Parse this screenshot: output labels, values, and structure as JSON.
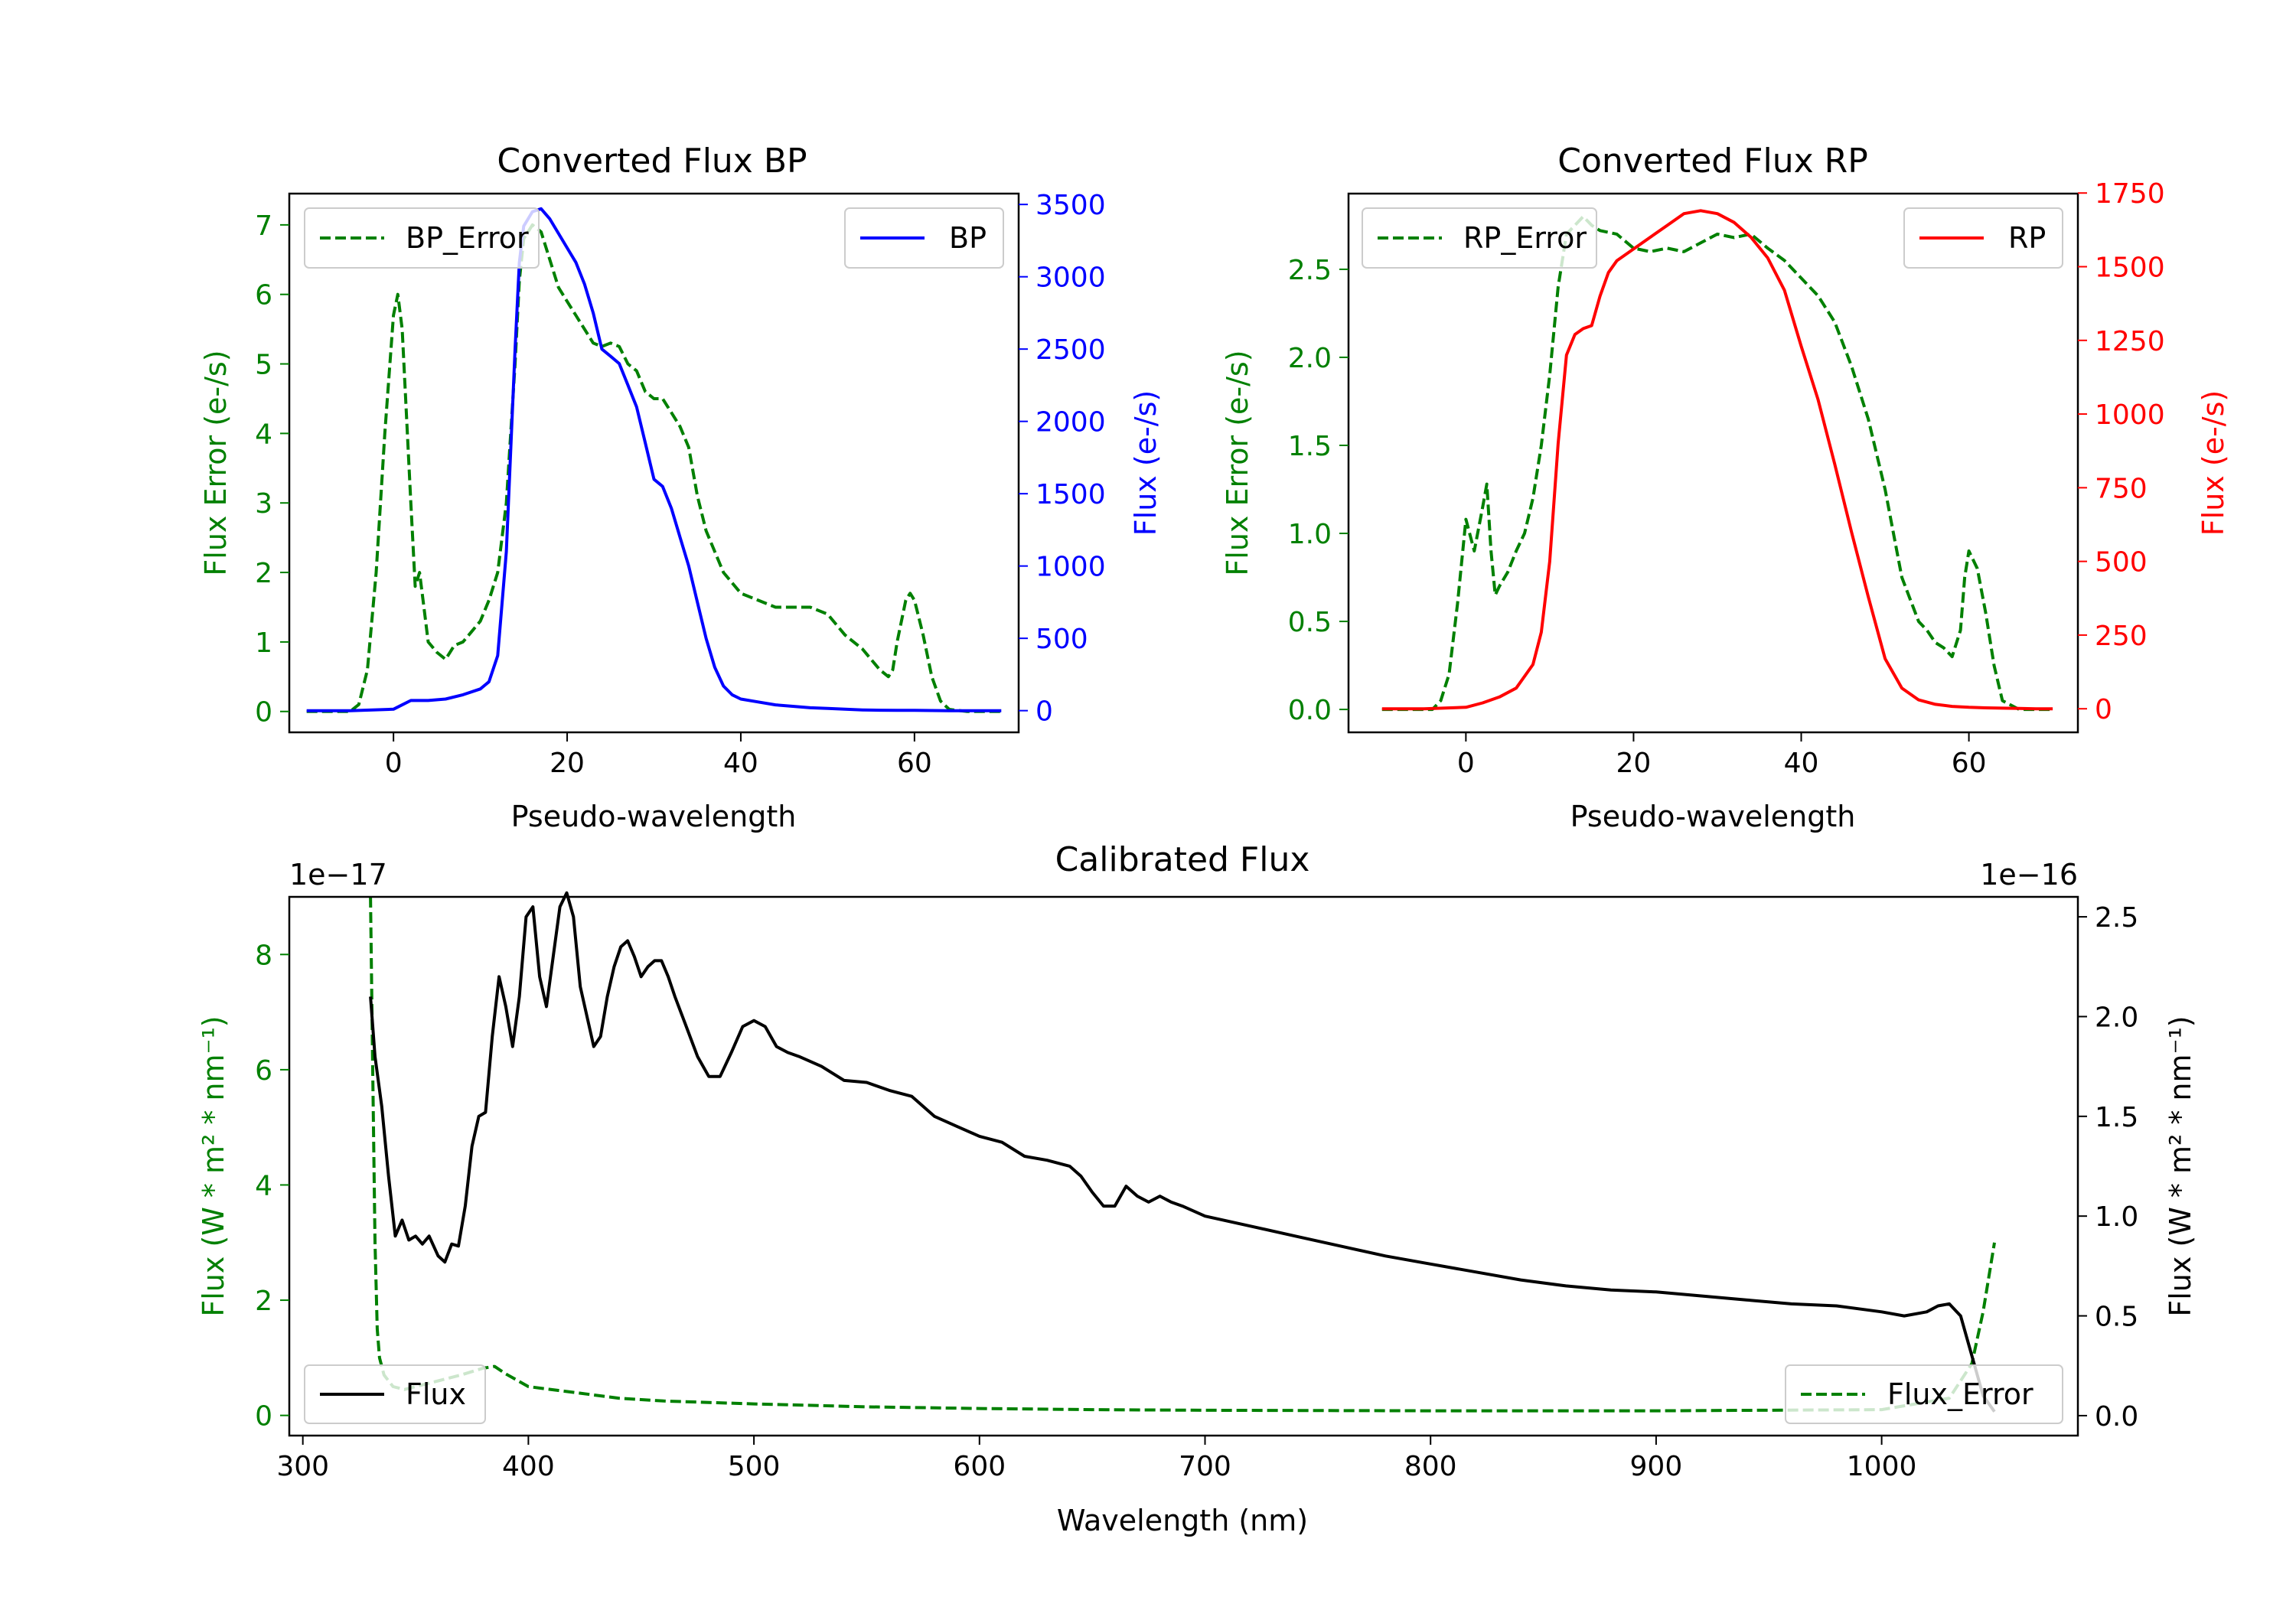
{
  "colors": {
    "green": "#008000",
    "blue": "#0000ff",
    "red": "#ff0000",
    "black": "#000000"
  },
  "chart_data": [
    {
      "id": "bp",
      "type": "line",
      "title": "Converted Flux BP",
      "xlabel": "Pseudo-wavelength",
      "ylabel_left": "Flux Error (e-/s)",
      "ylabel_right": "Flux (e-/s)",
      "xlim": [
        -12,
        72
      ],
      "ylim_left": [
        -0.3,
        7.45
      ],
      "ylim_right": [
        -150,
        3575
      ],
      "xticks": [
        0,
        20,
        40,
        60
      ],
      "xtick_labels": [
        "0",
        "20",
        "40",
        "60"
      ],
      "yticks_left": [
        0,
        1,
        2,
        3,
        4,
        5,
        6,
        7
      ],
      "ytick_labels_left": [
        "0",
        "1",
        "2",
        "3",
        "4",
        "5",
        "6",
        "7"
      ],
      "yticks_right": [
        0,
        500,
        1000,
        1500,
        2000,
        2500,
        3000,
        3500
      ],
      "ytick_labels_right": [
        "0",
        "500",
        "1000",
        "1500",
        "2000",
        "2500",
        "3000",
        "3500"
      ],
      "series": [
        {
          "name": "BP_Error",
          "axis": "left",
          "color": "#008000",
          "dashed": true,
          "legend": "top-left",
          "x": [
            -10,
            -5,
            -4,
            -3,
            -2,
            -1,
            0,
            0.5,
            1,
            2,
            2.5,
            3,
            3.5,
            4,
            5,
            6,
            7,
            8,
            9,
            10,
            11,
            12,
            13,
            14,
            14.5,
            15,
            16,
            17,
            18,
            19,
            20,
            21,
            22,
            23,
            24,
            25,
            26,
            27,
            28,
            29,
            30,
            31,
            32,
            33,
            34,
            35,
            36,
            38,
            40,
            42,
            44,
            46,
            48,
            50,
            52,
            54,
            56,
            57,
            57.5,
            58,
            59,
            59.5,
            60,
            61,
            62,
            63,
            64,
            66,
            68,
            70
          ],
          "values": [
            0,
            0,
            0.1,
            0.6,
            2.0,
            4.0,
            5.7,
            6.0,
            5.5,
            3.0,
            1.8,
            2.0,
            1.5,
            1.0,
            0.85,
            0.75,
            0.95,
            1.0,
            1.15,
            1.3,
            1.6,
            2.0,
            3.0,
            5.0,
            6.2,
            6.8,
            7.0,
            6.9,
            6.5,
            6.1,
            5.9,
            5.7,
            5.5,
            5.3,
            5.25,
            5.3,
            5.25,
            5.0,
            4.9,
            4.6,
            4.5,
            4.5,
            4.3,
            4.1,
            3.8,
            3.1,
            2.6,
            2.0,
            1.7,
            1.6,
            1.5,
            1.5,
            1.5,
            1.4,
            1.1,
            0.9,
            0.6,
            0.5,
            0.6,
            1.0,
            1.6,
            1.7,
            1.6,
            1.1,
            0.5,
            0.15,
            0.03,
            0,
            0,
            0
          ]
        },
        {
          "name": "BP",
          "axis": "right",
          "color": "#0000ff",
          "dashed": false,
          "legend": "top-right",
          "x": [
            -10,
            -5,
            0,
            1,
            2,
            3,
            4,
            6,
            8,
            10,
            11,
            12,
            13,
            14,
            14.5,
            15,
            16,
            17,
            18,
            19,
            20,
            21,
            22,
            23,
            24,
            25,
            26,
            27,
            28,
            29,
            30,
            31,
            32,
            33,
            34,
            35,
            36,
            37,
            38,
            39,
            40,
            42,
            44,
            46,
            48,
            50,
            52,
            54,
            56,
            58,
            60,
            62,
            64,
            66,
            68,
            70
          ],
          "values": [
            0,
            0,
            10,
            40,
            70,
            70,
            70,
            80,
            110,
            150,
            200,
            380,
            1100,
            2500,
            3100,
            3350,
            3450,
            3470,
            3400,
            3300,
            3200,
            3100,
            2950,
            2750,
            2500,
            2450,
            2400,
            2250,
            2100,
            1850,
            1600,
            1550,
            1400,
            1200,
            1000,
            750,
            500,
            300,
            170,
            110,
            80,
            60,
            40,
            30,
            20,
            15,
            10,
            5,
            3,
            2,
            2,
            1,
            0,
            0,
            0,
            0
          ]
        }
      ]
    },
    {
      "id": "rp",
      "type": "line",
      "title": "Converted Flux RP",
      "xlabel": "Pseudo-wavelength",
      "ylabel_left": "Flux Error (e-/s)",
      "ylabel_right": "Flux (e-/s)",
      "xlim": [
        -14,
        73
      ],
      "ylim_left": [
        -0.13,
        2.93
      ],
      "ylim_right": [
        -80,
        1748
      ],
      "xticks": [
        0,
        20,
        40,
        60
      ],
      "xtick_labels": [
        "0",
        "20",
        "40",
        "60"
      ],
      "yticks_left": [
        0,
        0.5,
        1.0,
        1.5,
        2.0,
        2.5
      ],
      "ytick_labels_left": [
        "0.0",
        "0.5",
        "1.0",
        "1.5",
        "2.0",
        "2.5"
      ],
      "yticks_right": [
        0,
        250,
        500,
        750,
        1000,
        1250,
        1500,
        1750
      ],
      "ytick_labels_right": [
        "0",
        "250",
        "500",
        "750",
        "1000",
        "1250",
        "1500",
        "1750"
      ],
      "series": [
        {
          "name": "RP_Error",
          "axis": "left",
          "color": "#008000",
          "dashed": true,
          "legend": "top-left",
          "x": [
            -10,
            -4,
            -3,
            -2,
            -1,
            0,
            1,
            2,
            2.5,
            3,
            3.5,
            4,
            5,
            6,
            7,
            8,
            9,
            10,
            11,
            12,
            13,
            14,
            15,
            16,
            18,
            20,
            22,
            24,
            26,
            28,
            30,
            32,
            34,
            36,
            38,
            40,
            42,
            44,
            46,
            48,
            50,
            52,
            54,
            55,
            56,
            57,
            58,
            59,
            59.5,
            60,
            61,
            62,
            63,
            64,
            66,
            68,
            70
          ],
          "values": [
            0,
            0,
            0.05,
            0.2,
            0.6,
            1.08,
            0.9,
            1.15,
            1.28,
            0.9,
            0.65,
            0.7,
            0.78,
            0.9,
            1.0,
            1.2,
            1.5,
            1.9,
            2.4,
            2.7,
            2.75,
            2.8,
            2.75,
            2.72,
            2.7,
            2.62,
            2.6,
            2.62,
            2.6,
            2.65,
            2.7,
            2.68,
            2.7,
            2.62,
            2.55,
            2.45,
            2.35,
            2.2,
            1.95,
            1.65,
            1.25,
            0.75,
            0.5,
            0.45,
            0.38,
            0.35,
            0.3,
            0.45,
            0.75,
            0.9,
            0.8,
            0.55,
            0.25,
            0.05,
            0,
            0,
            0
          ]
        },
        {
          "name": "RP",
          "axis": "right",
          "color": "#ff0000",
          "dashed": false,
          "legend": "top-right",
          "x": [
            -10,
            -5,
            0,
            2,
            4,
            6,
            8,
            9,
            10,
            11,
            12,
            13,
            14,
            15,
            16,
            17,
            18,
            20,
            22,
            24,
            26,
            28,
            30,
            32,
            34,
            36,
            38,
            40,
            42,
            44,
            46,
            48,
            50,
            52,
            54,
            56,
            58,
            60,
            62,
            64,
            66,
            68,
            70
          ],
          "values": [
            0,
            0,
            5,
            20,
            40,
            70,
            150,
            260,
            500,
            900,
            1200,
            1270,
            1290,
            1300,
            1400,
            1480,
            1520,
            1560,
            1600,
            1640,
            1680,
            1690,
            1680,
            1650,
            1600,
            1530,
            1420,
            1230,
            1050,
            830,
            600,
            380,
            170,
            70,
            30,
            15,
            8,
            5,
            3,
            2,
            1,
            0,
            0
          ]
        }
      ]
    },
    {
      "id": "calibrated",
      "type": "line",
      "title": "Calibrated Flux",
      "xlabel": "Wavelength (nm)",
      "ylabel_left": "Flux (W * m² * nm⁻¹)",
      "ylabel_right": "Flux (W * m² * nm⁻¹)",
      "offset_left": "1e−17",
      "offset_right": "1e−16",
      "xlim": [
        294,
        1087
      ],
      "ylim_left": [
        -0.35,
        9.0
      ],
      "ylim_right": [
        -0.1,
        2.6
      ],
      "xticks": [
        300,
        400,
        500,
        600,
        700,
        800,
        900,
        1000
      ],
      "xtick_labels": [
        "300",
        "400",
        "500",
        "600",
        "700",
        "800",
        "900",
        "1000"
      ],
      "yticks_left": [
        0,
        2,
        4,
        6,
        8
      ],
      "ytick_labels_left": [
        "0",
        "2",
        "4",
        "6",
        "8"
      ],
      "yticks_right": [
        0,
        0.5,
        1.0,
        1.5,
        2.0,
        2.5
      ],
      "ytick_labels_right": [
        "0.0",
        "0.5",
        "1.0",
        "1.5",
        "2.0",
        "2.5"
      ],
      "series": [
        {
          "name": "Flux_Error",
          "axis": "left",
          "color": "#008000",
          "dashed": true,
          "legend": "bottom-right",
          "x": [
            330,
            331,
            332,
            333,
            334,
            336,
            340,
            345,
            350,
            360,
            370,
            380,
            385,
            390,
            400,
            420,
            440,
            460,
            500,
            550,
            600,
            650,
            700,
            800,
            900,
            1000,
            1030,
            1040,
            1045,
            1050
          ],
          "values": [
            9.0,
            6.0,
            3.0,
            1.5,
            1.0,
            0.7,
            0.5,
            0.45,
            0.5,
            0.6,
            0.7,
            0.82,
            0.85,
            0.72,
            0.5,
            0.4,
            0.3,
            0.25,
            0.2,
            0.15,
            0.12,
            0.1,
            0.09,
            0.08,
            0.08,
            0.1,
            0.3,
            0.9,
            1.8,
            3.0
          ]
        },
        {
          "name": "Flux",
          "axis": "right",
          "color": "#000000",
          "dashed": false,
          "legend": "bottom-left",
          "x": [
            330,
            332,
            335,
            338,
            341,
            344,
            347,
            350,
            353,
            356,
            360,
            363,
            366,
            369,
            372,
            375,
            378,
            381,
            384,
            387,
            390,
            393,
            396,
            399,
            402,
            405,
            408,
            411,
            414,
            417,
            420,
            423,
            426,
            429,
            432,
            435,
            438,
            441,
            444,
            447,
            450,
            453,
            456,
            459,
            462,
            465,
            470,
            475,
            480,
            485,
            490,
            495,
            500,
            505,
            510,
            515,
            520,
            530,
            540,
            550,
            560,
            570,
            580,
            590,
            600,
            610,
            620,
            630,
            640,
            645,
            650,
            655,
            660,
            665,
            670,
            675,
            680,
            685,
            690,
            700,
            720,
            740,
            760,
            780,
            800,
            820,
            840,
            860,
            880,
            900,
            920,
            940,
            960,
            980,
            1000,
            1010,
            1020,
            1025,
            1030,
            1035,
            1040,
            1045,
            1050
          ],
          "values": [
            2.1,
            1.8,
            1.55,
            1.2,
            0.9,
            0.98,
            0.88,
            0.9,
            0.86,
            0.9,
            0.8,
            0.77,
            0.86,
            0.85,
            1.05,
            1.35,
            1.5,
            1.52,
            1.9,
            2.2,
            2.05,
            1.85,
            2.1,
            2.5,
            2.55,
            2.2,
            2.05,
            2.3,
            2.55,
            2.62,
            2.5,
            2.15,
            2.0,
            1.85,
            1.9,
            2.1,
            2.25,
            2.35,
            2.38,
            2.3,
            2.2,
            2.25,
            2.28,
            2.28,
            2.2,
            2.1,
            1.95,
            1.8,
            1.7,
            1.7,
            1.82,
            1.95,
            1.98,
            1.95,
            1.85,
            1.82,
            1.8,
            1.75,
            1.68,
            1.67,
            1.63,
            1.6,
            1.5,
            1.45,
            1.4,
            1.37,
            1.3,
            1.28,
            1.25,
            1.2,
            1.12,
            1.05,
            1.05,
            1.15,
            1.1,
            1.07,
            1.1,
            1.07,
            1.05,
            1.0,
            0.95,
            0.9,
            0.85,
            0.8,
            0.76,
            0.72,
            0.68,
            0.65,
            0.63,
            0.62,
            0.6,
            0.58,
            0.56,
            0.55,
            0.52,
            0.5,
            0.52,
            0.55,
            0.56,
            0.5,
            0.3,
            0.1,
            0.02
          ]
        }
      ]
    }
  ]
}
